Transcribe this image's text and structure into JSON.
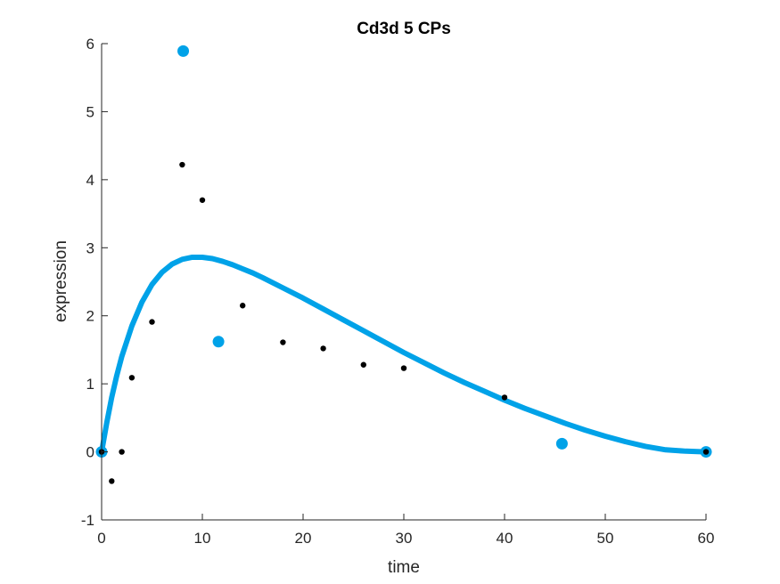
{
  "chart_data": {
    "type": "scatter",
    "title": "Cd3d 5 CPs",
    "xlabel": "time",
    "ylabel": "expression",
    "xlim": [
      0,
      60
    ],
    "ylim": [
      -1,
      6
    ],
    "xticks": [
      0,
      10,
      20,
      30,
      40,
      50,
      60
    ],
    "yticks": [
      -1,
      0,
      1,
      2,
      3,
      4,
      5,
      6
    ],
    "grid": false,
    "legend": "none",
    "colors": {
      "fit": "#00a2e8",
      "control_points": "#00a2e8",
      "observations": "#000000",
      "axis": "#262626"
    },
    "series": [
      {
        "kind": "line",
        "x": [
          0,
          0.5,
          1,
          1.5,
          2,
          3,
          4,
          5,
          6,
          7,
          8,
          9,
          10,
          11,
          12,
          13,
          14,
          15,
          16,
          18,
          20,
          22,
          24,
          26,
          28,
          30,
          32,
          34,
          36,
          38,
          40,
          42,
          44,
          46,
          48,
          50,
          52,
          54,
          56,
          58,
          60
        ],
        "values": [
          0,
          0.42,
          0.8,
          1.12,
          1.4,
          1.85,
          2.2,
          2.46,
          2.64,
          2.76,
          2.83,
          2.86,
          2.86,
          2.84,
          2.8,
          2.75,
          2.69,
          2.63,
          2.56,
          2.41,
          2.26,
          2.1,
          1.94,
          1.78,
          1.62,
          1.46,
          1.31,
          1.16,
          1.02,
          0.89,
          0.76,
          0.64,
          0.53,
          0.42,
          0.32,
          0.23,
          0.15,
          0.08,
          0.03,
          0.01,
          0
        ]
      },
      {
        "kind": "points-large",
        "x": [
          0,
          8.1,
          11.6,
          45.7,
          60
        ],
        "values": [
          0,
          5.89,
          1.62,
          0.12,
          0
        ]
      },
      {
        "kind": "points-small",
        "x": [
          0,
          1,
          2,
          3,
          5,
          8,
          10,
          14,
          18,
          22,
          26,
          30,
          40,
          60
        ],
        "values": [
          0,
          -0.43,
          0,
          1.09,
          1.91,
          4.22,
          3.7,
          2.15,
          1.61,
          1.52,
          1.28,
          1.23,
          0.8,
          0
        ]
      }
    ]
  }
}
